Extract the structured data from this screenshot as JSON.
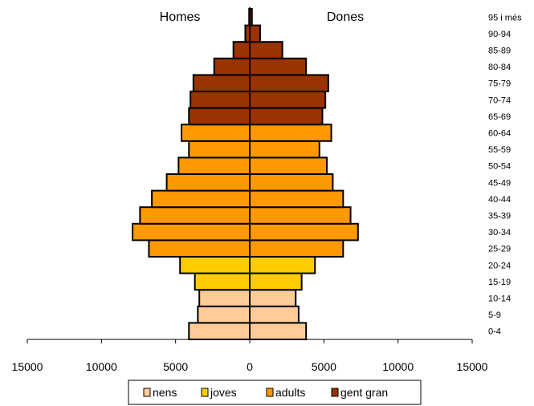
{
  "chart_data": {
    "type": "bar",
    "orientation": "horizontal",
    "subtype": "population-pyramid",
    "side_labels": {
      "left": "Homes",
      "right": "Dones"
    },
    "categories": [
      "0-4",
      "5-9",
      "10-14",
      "15-19",
      "20-24",
      "25-29",
      "30-34",
      "35-39",
      "40-44",
      "45-49",
      "50-54",
      "55-59",
      "60-64",
      "65-69",
      "70-74",
      "75-79",
      "80-84",
      "85-89",
      "90-94",
      "95 i més"
    ],
    "group_of_category": [
      "nens",
      "nens",
      "nens",
      "joves",
      "joves",
      "adults",
      "adults",
      "adults",
      "adults",
      "adults",
      "adults",
      "adults",
      "adults",
      "gent gran",
      "gent gran",
      "gent gran",
      "gent gran",
      "gent gran",
      "gent gran",
      "gent gran"
    ],
    "series": [
      {
        "side": "Homes",
        "values": [
          4100,
          3500,
          3400,
          3700,
          4700,
          6800,
          7900,
          7400,
          6600,
          5600,
          4800,
          4100,
          4600,
          4100,
          4000,
          3800,
          2400,
          1100,
          300,
          40
        ]
      },
      {
        "side": "Dones",
        "values": [
          3800,
          3300,
          3100,
          3500,
          4400,
          6300,
          7300,
          6800,
          6300,
          5600,
          5200,
          4700,
          5500,
          4900,
          5100,
          5300,
          3800,
          2200,
          700,
          150
        ]
      }
    ],
    "xlim": [
      -15000,
      15000
    ],
    "x_ticks": [
      -15000,
      -10000,
      -5000,
      0,
      5000,
      10000,
      15000
    ],
    "x_tick_labels": [
      "15000",
      "10000",
      "5000",
      "0",
      "5000",
      "10000",
      "15000"
    ],
    "legend": {
      "position": "bottom",
      "items": [
        {
          "name": "nens",
          "color": "#ffcc99"
        },
        {
          "name": "joves",
          "color": "#ffcc00"
        },
        {
          "name": "adults",
          "color": "#ff9900"
        },
        {
          "name": "gent gran",
          "color": "#993300"
        }
      ]
    },
    "grid": false
  }
}
